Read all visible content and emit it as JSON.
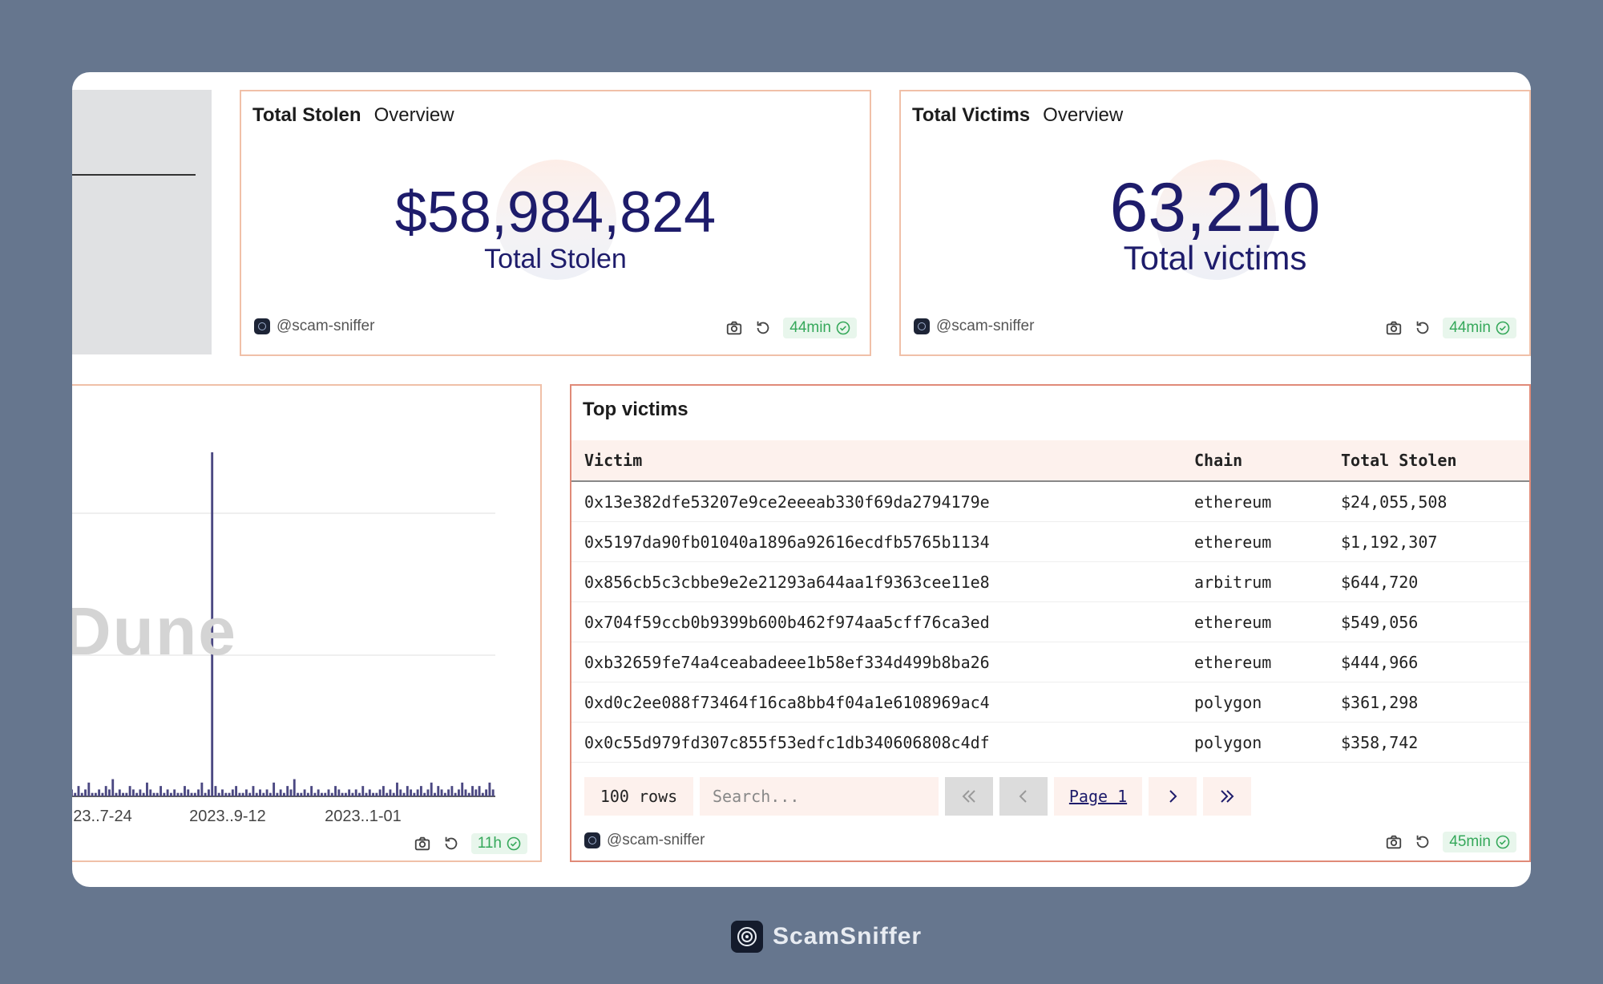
{
  "stolen_panel": {
    "title": "Total Stolen",
    "tab": "Overview",
    "value": "$58,984,824",
    "label": "Total Stolen",
    "author": "@scam-sniffer",
    "age": "44min"
  },
  "victims_panel": {
    "title": "Total Victims",
    "tab": "Overview",
    "value": "63,210",
    "label": "Total victims",
    "author": "@scam-sniffer",
    "age": "44min"
  },
  "chart_panel": {
    "watermark": "Dune",
    "age": "11h",
    "chart_data": {
      "type": "bar",
      "title": "",
      "xlabel": "",
      "ylabel": "",
      "tick_labels": [
        "23..7-24",
        "2023..9-12",
        "2023..1-01"
      ],
      "series_color": "#4b4882",
      "values": [
        2,
        1,
        3,
        1,
        2,
        4,
        1,
        1,
        2,
        1,
        3,
        2,
        5,
        1,
        2,
        1,
        1,
        3,
        2,
        1,
        2,
        1,
        4,
        2,
        1,
        1,
        3,
        1,
        2,
        1,
        2,
        1,
        1,
        3,
        2,
        1,
        1,
        2,
        4,
        1,
        2,
        100,
        3,
        1,
        2,
        1,
        1,
        2,
        3,
        1,
        1,
        2,
        1,
        3,
        1,
        2,
        1,
        2,
        1,
        4,
        1,
        2,
        1,
        3,
        2,
        5,
        1,
        1,
        2,
        1,
        3,
        1,
        2,
        1,
        1,
        2,
        1,
        3,
        2,
        1,
        1,
        2,
        1,
        2,
        1,
        3,
        1,
        2,
        1,
        1,
        2,
        3,
        1,
        2,
        1,
        4,
        2,
        1,
        3,
        2,
        1,
        2,
        3,
        1,
        2,
        4,
        1,
        3,
        2,
        1,
        2,
        3,
        1,
        2,
        4,
        2,
        1,
        3,
        2,
        3,
        1,
        2,
        4,
        2
      ]
    }
  },
  "table_panel": {
    "title": "Top victims",
    "columns": [
      "Victim",
      "Chain",
      "Total Stolen"
    ],
    "rows": [
      [
        "0x13e382dfe53207e9ce2eeeab330f69da2794179e",
        "ethereum",
        "$24,055,508"
      ],
      [
        "0x5197da90fb01040a1896a92616ecdfb5765b1134",
        "ethereum",
        "$1,192,307"
      ],
      [
        "0x856cb5c3cbbe9e2e21293a644aa1f9363cee11e8",
        "arbitrum",
        "$644,720"
      ],
      [
        "0x704f59ccb0b9399b600b462f974aa5cff76ca3ed",
        "ethereum",
        "$549,056"
      ],
      [
        "0xb32659fe74a4ceabadeee1b58ef334d499b8ba26",
        "ethereum",
        "$444,966"
      ],
      [
        "0xd0c2ee088f73464f16ca8bb4f04a1e6108969ac4",
        "polygon",
        "$361,298"
      ],
      [
        "0x0c55d979fd307c855f53edfc1db340606808c4df",
        "polygon",
        "$358,742"
      ]
    ],
    "rows_label": "100 rows",
    "search_placeholder": "Search...",
    "page_label": "Page 1",
    "author": "@scam-sniffer",
    "age": "45min"
  },
  "brand": {
    "name": "ScamSniffer"
  }
}
